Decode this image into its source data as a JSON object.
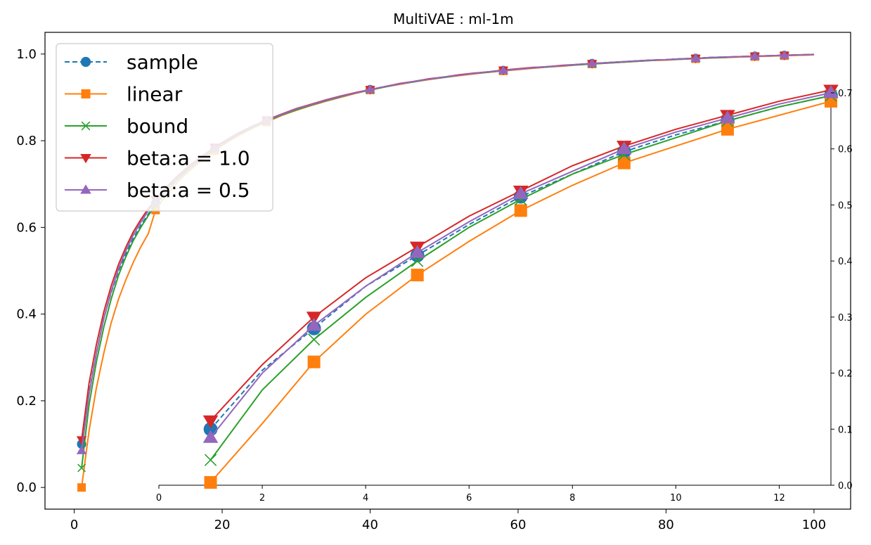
{
  "chart_data": {
    "type": "line",
    "title": "MultiVAE : ml-1m",
    "legend": {
      "placement": "upper-left",
      "entries": [
        "sample",
        "linear",
        "bound",
        "beta:a = 1.0",
        "beta:a = 0.5"
      ]
    },
    "colors": {
      "sample": "#1f77b4",
      "linear": "#ff7f0e",
      "bound": "#2ca02c",
      "beta:a = 1.0": "#d62728",
      "beta:a = 0.5": "#9467bd"
    },
    "markers": {
      "sample": "circle",
      "linear": "square",
      "bound": "x",
      "beta:a = 1.0": "triangle-down",
      "beta:a = 0.5": "triangle-up"
    },
    "main_axes": {
      "xlim": [
        -3.95,
        104.95
      ],
      "ylim": [
        -0.05,
        1.05
      ],
      "xticks": [
        "0",
        "20",
        "40",
        "60",
        "80",
        "100"
      ],
      "yticks": [
        "0.0",
        "0.2",
        "0.4",
        "0.6",
        "0.8",
        "1.0"
      ],
      "x": [
        1,
        2,
        3,
        4,
        5,
        6,
        7,
        8,
        9,
        10,
        11,
        12,
        13,
        14,
        15,
        16,
        17,
        18,
        19,
        20,
        22,
        24,
        26,
        28,
        30,
        32,
        34,
        36,
        38,
        40,
        42,
        44,
        46,
        48,
        50,
        52,
        54,
        56,
        58,
        60,
        62,
        64,
        66,
        68,
        70,
        72,
        74,
        76,
        78,
        80,
        82,
        84,
        86,
        88,
        90,
        92,
        94,
        96,
        98,
        100
      ],
      "marker_every_index": [
        0,
        10,
        18,
        22,
        29,
        38,
        44,
        51,
        55,
        57
      ],
      "series": [
        {
          "name": "sample",
          "values": [
            0.1,
            0.22,
            0.31,
            0.39,
            0.45,
            0.5,
            0.54,
            0.575,
            0.605,
            0.63,
            0.655,
            0.675,
            0.695,
            0.713,
            0.728,
            0.743,
            0.757,
            0.77,
            0.782,
            0.793,
            0.813,
            0.831,
            0.846,
            0.86,
            0.872,
            0.883,
            0.893,
            0.902,
            0.91,
            0.918,
            0.925,
            0.931,
            0.937,
            0.942,
            0.947,
            0.951,
            0.955,
            0.959,
            0.962,
            0.965,
            0.968,
            0.971,
            0.973,
            0.976,
            0.978,
            0.98,
            0.982,
            0.984,
            0.986,
            0.987,
            0.989,
            0.99,
            0.992,
            0.993,
            0.994,
            0.995,
            0.996,
            0.997,
            0.998,
            0.999
          ]
        },
        {
          "name": "linear",
          "values": [
            0.0,
            0.13,
            0.23,
            0.31,
            0.38,
            0.435,
            0.48,
            0.52,
            0.555,
            0.585,
            0.64,
            0.665,
            0.685,
            0.705,
            0.722,
            0.737,
            0.751,
            0.764,
            0.777,
            0.789,
            0.81,
            0.828,
            0.843,
            0.858,
            0.87,
            0.881,
            0.891,
            0.9,
            0.909,
            0.917,
            0.924,
            0.93,
            0.936,
            0.941,
            0.946,
            0.95,
            0.954,
            0.958,
            0.961,
            0.964,
            0.967,
            0.97,
            0.972,
            0.975,
            0.977,
            0.979,
            0.981,
            0.983,
            0.985,
            0.986,
            0.988,
            0.989,
            0.991,
            0.992,
            0.993,
            0.994,
            0.995,
            0.996,
            0.997,
            0.998
          ]
        },
        {
          "name": "bound",
          "values": [
            0.045,
            0.19,
            0.29,
            0.37,
            0.435,
            0.49,
            0.533,
            0.57,
            0.6,
            0.627,
            0.652,
            0.673,
            0.693,
            0.711,
            0.727,
            0.742,
            0.756,
            0.769,
            0.781,
            0.792,
            0.812,
            0.83,
            0.845,
            0.859,
            0.871,
            0.882,
            0.892,
            0.901,
            0.91,
            0.917,
            0.924,
            0.931,
            0.936,
            0.942,
            0.946,
            0.951,
            0.955,
            0.958,
            0.962,
            0.965,
            0.968,
            0.97,
            0.973,
            0.975,
            0.977,
            0.979,
            0.981,
            0.983,
            0.985,
            0.987,
            0.988,
            0.99,
            0.991,
            0.992,
            0.994,
            0.995,
            0.996,
            0.997,
            0.998,
            0.999
          ]
        },
        {
          "name": "beta:a = 1.0",
          "values": [
            0.11,
            0.24,
            0.33,
            0.405,
            0.465,
            0.515,
            0.555,
            0.59,
            0.618,
            0.643,
            0.664,
            0.684,
            0.702,
            0.719,
            0.734,
            0.748,
            0.761,
            0.773,
            0.785,
            0.796,
            0.816,
            0.833,
            0.848,
            0.861,
            0.874,
            0.884,
            0.894,
            0.903,
            0.911,
            0.918,
            0.925,
            0.932,
            0.937,
            0.943,
            0.947,
            0.952,
            0.956,
            0.959,
            0.963,
            0.966,
            0.969,
            0.971,
            0.974,
            0.976,
            0.978,
            0.98,
            0.982,
            0.984,
            0.986,
            0.987,
            0.989,
            0.99,
            0.992,
            0.993,
            0.994,
            0.995,
            0.996,
            0.997,
            0.998,
            0.999
          ]
        },
        {
          "name": "beta:a = 0.5",
          "values": [
            0.085,
            0.215,
            0.31,
            0.39,
            0.452,
            0.505,
            0.547,
            0.583,
            0.612,
            0.638,
            0.66,
            0.68,
            0.699,
            0.716,
            0.731,
            0.745,
            0.759,
            0.771,
            0.783,
            0.794,
            0.814,
            0.832,
            0.847,
            0.86,
            0.873,
            0.883,
            0.893,
            0.902,
            0.91,
            0.918,
            0.925,
            0.931,
            0.937,
            0.942,
            0.947,
            0.951,
            0.955,
            0.959,
            0.962,
            0.965,
            0.968,
            0.971,
            0.973,
            0.976,
            0.978,
            0.98,
            0.982,
            0.984,
            0.986,
            0.987,
            0.989,
            0.99,
            0.992,
            0.993,
            0.994,
            0.995,
            0.996,
            0.997,
            0.998,
            0.999
          ]
        }
      ]
    },
    "inset_axes": {
      "xlim": [
        0,
        13
      ],
      "ylim": [
        0,
        0.7
      ],
      "xticks": [
        "0",
        "2",
        "4",
        "6",
        "8",
        "10",
        "12"
      ],
      "yticks": [
        "0.0",
        "0.1",
        "0.2",
        "0.3",
        "0.4",
        "0.5",
        "0.6",
        "0.7"
      ],
      "x": [
        1,
        2,
        3,
        4,
        5,
        6,
        7,
        8,
        9,
        10,
        11,
        12,
        13
      ],
      "marker_every_index": [
        0,
        2,
        4,
        6,
        8,
        10,
        12
      ],
      "series": [
        {
          "name": "sample",
          "values": [
            0.1,
            0.205,
            0.28,
            0.355,
            0.41,
            0.465,
            0.515,
            0.555,
            0.595,
            0.625,
            0.65,
            0.675,
            0.695
          ]
        },
        {
          "name": "linear",
          "values": [
            0.005,
            0.11,
            0.22,
            0.305,
            0.375,
            0.435,
            0.49,
            0.535,
            0.575,
            0.605,
            0.635,
            0.66,
            0.685
          ]
        },
        {
          "name": "bound",
          "values": [
            0.045,
            0.17,
            0.26,
            0.335,
            0.4,
            0.46,
            0.51,
            0.555,
            0.59,
            0.62,
            0.65,
            0.675,
            0.695
          ]
        },
        {
          "name": "beta:a = 1.0",
          "values": [
            0.115,
            0.215,
            0.3,
            0.37,
            0.425,
            0.48,
            0.525,
            0.57,
            0.605,
            0.635,
            0.66,
            0.685,
            0.705
          ]
        },
        {
          "name": "beta:a = 0.5",
          "values": [
            0.085,
            0.2,
            0.285,
            0.355,
            0.415,
            0.47,
            0.52,
            0.56,
            0.6,
            0.63,
            0.655,
            0.68,
            0.7
          ]
        }
      ]
    }
  }
}
